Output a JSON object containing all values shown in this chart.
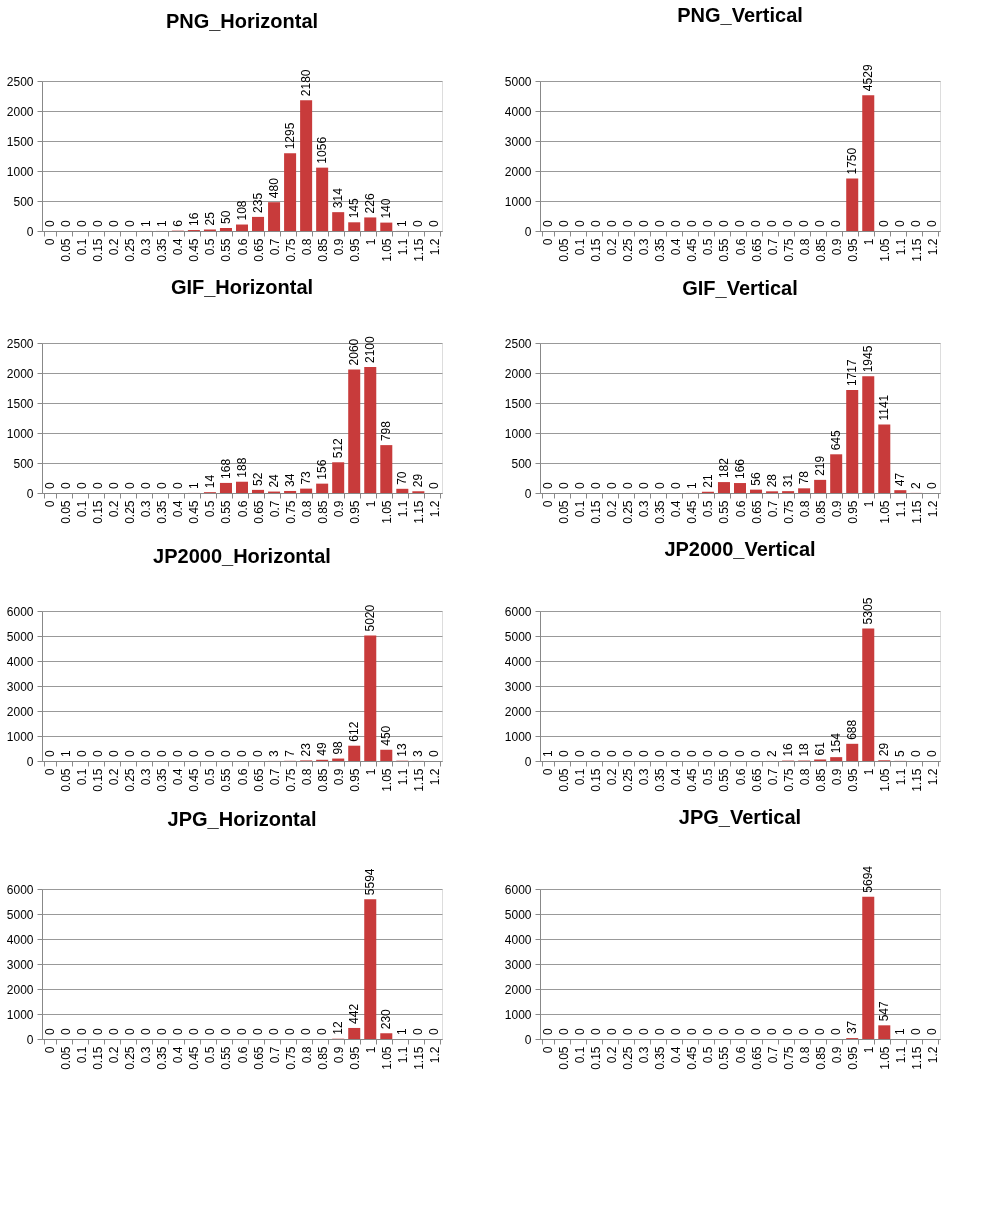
{
  "chart_data": [
    {
      "type": "bar",
      "title": "PNG_Horizontal",
      "categories": [
        "0",
        "0.05",
        "0.1",
        "0.15",
        "0.2",
        "0.25",
        "0.3",
        "0.35",
        "0.4",
        "0.45",
        "0.5",
        "0.55",
        "0.6",
        "0.65",
        "0.7",
        "0.75",
        "0.8",
        "0.85",
        "0.9",
        "0.95",
        "1",
        "1.05",
        "1.1",
        "1.15",
        "1.2"
      ],
      "values": [
        0,
        0,
        0,
        0,
        0,
        0,
        1,
        1,
        6,
        16,
        25,
        50,
        108,
        235,
        480,
        1295,
        2180,
        1056,
        314,
        145,
        226,
        140,
        1,
        0,
        0
      ],
      "color": "#c83b3b",
      "ylim": [
        0,
        2500
      ],
      "yticks": [
        0,
        500,
        1000,
        1500,
        2000,
        2500
      ],
      "grid": "y",
      "data_labels": true
    },
    {
      "type": "bar",
      "title": "PNG_Vertical",
      "categories": [
        "0",
        "0.05",
        "0.1",
        "0.15",
        "0.2",
        "0.25",
        "0.3",
        "0.35",
        "0.4",
        "0.45",
        "0.5",
        "0.55",
        "0.6",
        "0.65",
        "0.7",
        "0.75",
        "0.8",
        "0.85",
        "0.9",
        "0.95",
        "1",
        "1.05",
        "1.1",
        "1.15",
        "1.2"
      ],
      "values": [
        0,
        0,
        0,
        0,
        0,
        0,
        0,
        0,
        0,
        0,
        0,
        0,
        0,
        0,
        0,
        0,
        0,
        0,
        0,
        1750,
        4529,
        0,
        0,
        0,
        0
      ],
      "color": "#c83b3b",
      "ylim": [
        0,
        5000
      ],
      "yticks": [
        0,
        1000,
        2000,
        3000,
        4000,
        5000
      ],
      "grid": "y",
      "data_labels": true
    },
    {
      "type": "bar",
      "title": "GIF_Horizontal",
      "categories": [
        "0",
        "0.05",
        "0.1",
        "0.15",
        "0.2",
        "0.25",
        "0.3",
        "0.35",
        "0.4",
        "0.45",
        "0.5",
        "0.55",
        "0.6",
        "0.65",
        "0.7",
        "0.75",
        "0.8",
        "0.85",
        "0.9",
        "0.95",
        "1",
        "1.05",
        "1.1",
        "1.15",
        "1.2"
      ],
      "values": [
        0,
        0,
        0,
        0,
        0,
        0,
        0,
        0,
        0,
        1,
        14,
        168,
        188,
        52,
        24,
        34,
        73,
        156,
        512,
        2060,
        2100,
        798,
        70,
        29,
        0
      ],
      "color": "#c83b3b",
      "ylim": [
        0,
        2500
      ],
      "yticks": [
        0,
        500,
        1000,
        1500,
        2000,
        2500
      ],
      "grid": "y",
      "data_labels": true
    },
    {
      "type": "bar",
      "title": "GIF_Vertical",
      "categories": [
        "0",
        "0.05",
        "0.1",
        "0.15",
        "0.2",
        "0.25",
        "0.3",
        "0.35",
        "0.4",
        "0.45",
        "0.5",
        "0.55",
        "0.6",
        "0.65",
        "0.7",
        "0.75",
        "0.8",
        "0.85",
        "0.9",
        "0.95",
        "1",
        "1.05",
        "1.1",
        "1.15",
        "1.2"
      ],
      "values": [
        0,
        0,
        0,
        0,
        0,
        0,
        0,
        0,
        0,
        1,
        21,
        182,
        166,
        56,
        28,
        31,
        78,
        219,
        645,
        1717,
        1945,
        1141,
        47,
        2,
        0
      ],
      "color": "#c83b3b",
      "ylim": [
        0,
        2500
      ],
      "yticks": [
        0,
        500,
        1000,
        1500,
        2000,
        2500
      ],
      "grid": "y",
      "data_labels": true
    },
    {
      "type": "bar",
      "title": "JP2000_Horizontal",
      "categories": [
        "0",
        "0.05",
        "0.1",
        "0.15",
        "0.2",
        "0.25",
        "0.3",
        "0.35",
        "0.4",
        "0.45",
        "0.5",
        "0.55",
        "0.6",
        "0.65",
        "0.7",
        "0.75",
        "0.8",
        "0.85",
        "0.9",
        "0.95",
        "1",
        "1.05",
        "1.1",
        "1.15",
        "1.2"
      ],
      "values": [
        0,
        1,
        0,
        0,
        0,
        0,
        0,
        0,
        0,
        0,
        0,
        0,
        0,
        0,
        3,
        7,
        23,
        49,
        98,
        612,
        5020,
        450,
        13,
        3,
        0
      ],
      "color": "#c83b3b",
      "ylim": [
        0,
        6000
      ],
      "yticks": [
        0,
        1000,
        2000,
        3000,
        4000,
        5000,
        6000
      ],
      "grid": "y",
      "data_labels": true
    },
    {
      "type": "bar",
      "title": "JP2000_Vertical",
      "categories": [
        "0",
        "0.05",
        "0.1",
        "0.15",
        "0.2",
        "0.25",
        "0.3",
        "0.35",
        "0.4",
        "0.45",
        "0.5",
        "0.55",
        "0.6",
        "0.65",
        "0.7",
        "0.75",
        "0.8",
        "0.85",
        "0.9",
        "0.95",
        "1",
        "1.05",
        "1.1",
        "1.15",
        "1.2"
      ],
      "values": [
        1,
        0,
        0,
        0,
        0,
        0,
        0,
        0,
        0,
        0,
        0,
        0,
        0,
        0,
        2,
        16,
        18,
        61,
        154,
        688,
        5305,
        29,
        5,
        0,
        0
      ],
      "color": "#c83b3b",
      "ylim": [
        0,
        6000
      ],
      "yticks": [
        0,
        1000,
        2000,
        3000,
        4000,
        5000,
        6000
      ],
      "grid": "y",
      "data_labels": true
    },
    {
      "type": "bar",
      "title": "JPG_Horizontal",
      "categories": [
        "0",
        "0.05",
        "0.1",
        "0.15",
        "0.2",
        "0.25",
        "0.3",
        "0.35",
        "0.4",
        "0.45",
        "0.5",
        "0.55",
        "0.6",
        "0.65",
        "0.7",
        "0.75",
        "0.8",
        "0.85",
        "0.9",
        "0.95",
        "1",
        "1.05",
        "1.1",
        "1.15",
        "1.2"
      ],
      "values": [
        0,
        0,
        0,
        0,
        0,
        0,
        0,
        0,
        0,
        0,
        0,
        0,
        0,
        0,
        0,
        0,
        0,
        0,
        12,
        442,
        5594,
        230,
        1,
        0,
        0
      ],
      "color": "#c83b3b",
      "ylim": [
        0,
        6000
      ],
      "yticks": [
        0,
        1000,
        2000,
        3000,
        4000,
        5000,
        6000
      ],
      "grid": "y",
      "data_labels": true
    },
    {
      "type": "bar",
      "title": "JPG_Vertical",
      "categories": [
        "0",
        "0.05",
        "0.1",
        "0.15",
        "0.2",
        "0.25",
        "0.3",
        "0.35",
        "0.4",
        "0.45",
        "0.5",
        "0.55",
        "0.6",
        "0.65",
        "0.7",
        "0.75",
        "0.8",
        "0.85",
        "0.9",
        "0.95",
        "1",
        "1.05",
        "1.1",
        "1.15",
        "1.2"
      ],
      "values": [
        0,
        0,
        0,
        0,
        0,
        0,
        0,
        0,
        0,
        0,
        0,
        0,
        0,
        0,
        0,
        0,
        0,
        0,
        0,
        37,
        5694,
        547,
        1,
        0,
        0
      ],
      "color": "#c83b3b",
      "ylim": [
        0,
        6000
      ],
      "yticks": [
        0,
        1000,
        2000,
        3000,
        4000,
        5000,
        6000
      ],
      "grid": "y",
      "data_labels": true
    }
  ]
}
